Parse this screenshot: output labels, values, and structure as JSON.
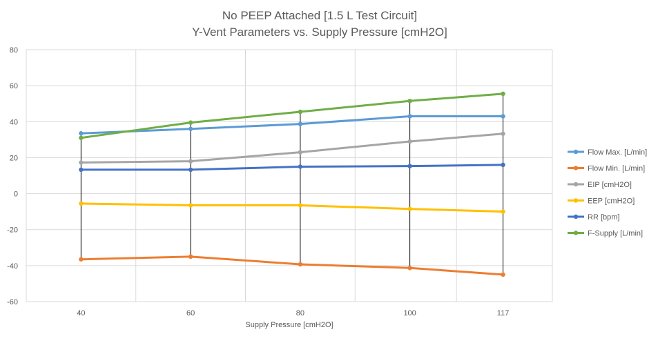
{
  "chart_data": {
    "type": "line",
    "title": "No PEEP Attached [1.5 L Test Circuit]",
    "subtitle": "Y-Vent Parameters vs. Supply Pressure [cmH2O]",
    "xlabel": "Supply Pressure [cmH2O]",
    "ylabel": "",
    "categories": [
      "40",
      "60",
      "80",
      "100",
      "117"
    ],
    "x_positions": [
      40,
      60,
      80,
      100,
      117
    ],
    "xlim": [
      30,
      126
    ],
    "ylim": [
      -60,
      80
    ],
    "yticks": [
      -60,
      -40,
      -20,
      0,
      20,
      40,
      60,
      80
    ],
    "grid": true,
    "legend_position": "right",
    "high_low_lines": true,
    "series": [
      {
        "name": "Flow Max. [L/min]",
        "color": "#5B9BD5",
        "values": [
          33.5,
          36,
          38.7,
          43,
          43
        ]
      },
      {
        "name": "Flow Min. [L/min]",
        "color": "#ED7D31",
        "values": [
          -36.5,
          -35,
          -39.3,
          -41.3,
          -45
        ]
      },
      {
        "name": "EIP [cmH2O]",
        "color": "#A5A5A5",
        "values": [
          17.3,
          18,
          23,
          29,
          33.3
        ]
      },
      {
        "name": "EEP [cmH2O]",
        "color": "#FFC000",
        "values": [
          -5.5,
          -6.5,
          -6.5,
          -8.5,
          -10
        ]
      },
      {
        "name": "RR [bpm]",
        "color": "#4472C4",
        "values": [
          13.3,
          13.3,
          15,
          15.3,
          16
        ]
      },
      {
        "name": "F-Supply [L/min]",
        "color": "#70AD47",
        "values": [
          31,
          39.5,
          45.5,
          51.5,
          55.5
        ]
      }
    ]
  }
}
